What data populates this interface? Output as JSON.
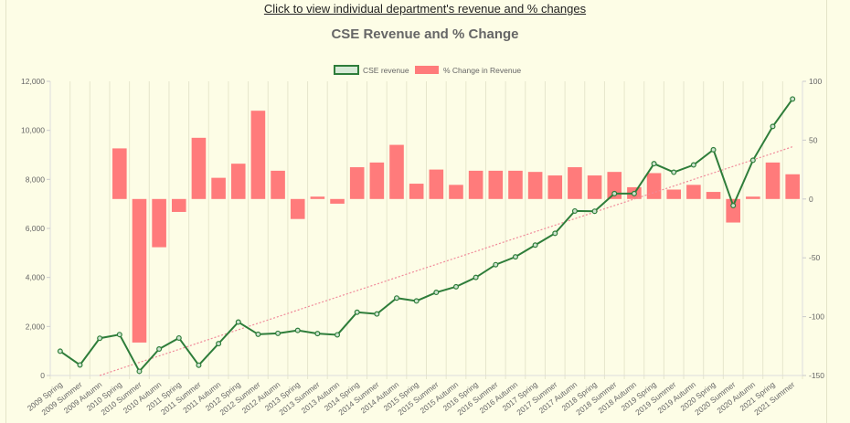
{
  "header": {
    "link_text": "Click to view individual department's revenue and % changes"
  },
  "chart_data": {
    "type": "bar",
    "title": "CSE Revenue and % Change",
    "legend_position": "top-center",
    "grid": true,
    "categories": [
      "2009 Spring",
      "2009 Summer",
      "2009 Autumn",
      "2010 Spring",
      "2010 Summer",
      "2010 Autumn",
      "2011 Spring",
      "2011 Summer",
      "2011 Autumn",
      "2012 Spring",
      "2012 Summer",
      "2012 Autumn",
      "2013 Spring",
      "2013 Summer",
      "2013 Autumn",
      "2014 Spring",
      "2014 Summer",
      "2014 Autumn",
      "2015 Spring",
      "2015 Summer",
      "2015 Autumn",
      "2016 Spring",
      "2016 Summer",
      "2016 Autumn",
      "2017 Spring",
      "2017 Summer",
      "2017 Autumn",
      "2018 Spring",
      "2018 Summer",
      "2018 Autumn",
      "2019 Spring",
      "2019 Summer",
      "2019 Autumn",
      "2020 Spring",
      "2020 Summer",
      "2020 Autumn",
      "2021 Spring",
      "2021 Summer"
    ],
    "y_left": {
      "min": 0,
      "max": 12000,
      "ticks": [
        "0",
        "2,000",
        "4,000",
        "6,000",
        "8,000",
        "10,000",
        "12,000"
      ]
    },
    "y_right": {
      "min": -150,
      "max": 100,
      "ticks": [
        "-150",
        "-100",
        "-50",
        "0",
        "50",
        "100"
      ]
    },
    "series": [
      {
        "name": "CSE revenue",
        "chart_type": "line",
        "axis": "left",
        "color": "#2e7d3a",
        "values": [
          990,
          430,
          1520,
          1670,
          170,
          1080,
          1530,
          420,
          1300,
          2180,
          1680,
          1720,
          1840,
          1710,
          1660,
          2580,
          2510,
          3160,
          3040,
          3390,
          3620,
          4000,
          4520,
          4840,
          5320,
          5800,
          6710,
          6700,
          7420,
          7420,
          8640,
          8290,
          8590,
          9210,
          6930,
          8780,
          10160,
          11280
        ]
      },
      {
        "name": "% Change in Revenue",
        "chart_type": "bar",
        "axis": "right",
        "color": "#ff7b7b",
        "values": [
          null,
          null,
          null,
          43,
          -122,
          -41,
          -11,
          52,
          18,
          30,
          75,
          24,
          -17,
          2,
          -4,
          27,
          31,
          46,
          13,
          25,
          12,
          24,
          24,
          24,
          23,
          20,
          27,
          20,
          23,
          10,
          22,
          8,
          12,
          6,
          -20,
          2,
          31,
          21
        ]
      },
      {
        "name": "",
        "chart_type": "trendline",
        "axis": "left",
        "color": "#f08a9a",
        "dashed": true,
        "start": [
          2,
          0
        ],
        "end": [
          37,
          9330
        ]
      }
    ]
  }
}
